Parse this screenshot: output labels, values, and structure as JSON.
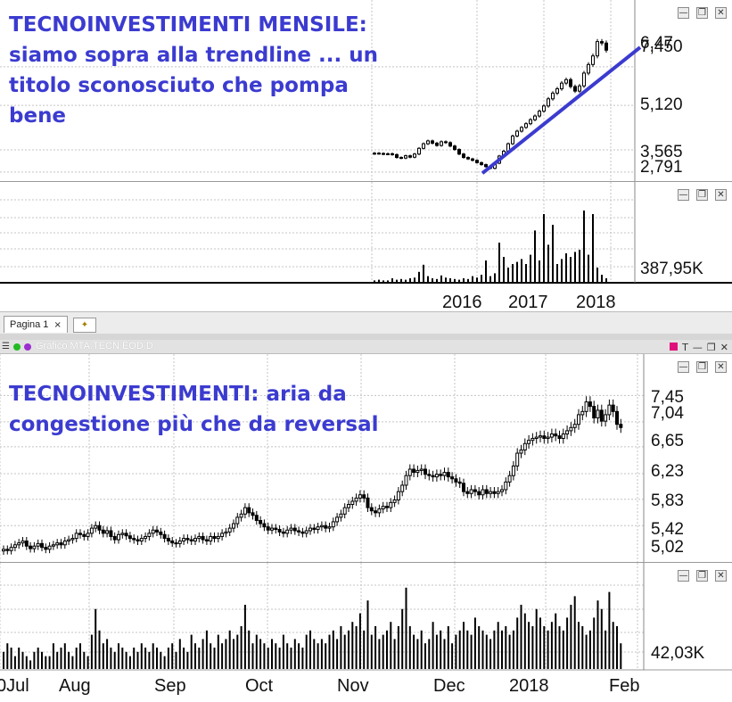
{
  "window_buttons": {
    "minimize": "—",
    "restore": "❐",
    "close": "✕"
  },
  "monthly_chart": {
    "annotation": "TECNOINVESTIMENTI MENSILE:\nsiamo sopra alla trendline ... un\ntitolo sconosciuto che pompa\nbene",
    "price_labels": [
      "6,47",
      "7,450",
      "5,120",
      "3,565",
      "2,791"
    ],
    "volume_label": "387,95K",
    "x_labels": [
      "2016",
      "2017",
      "2018"
    ]
  },
  "tabs": {
    "page_tab": "Pagina 1",
    "close_glyph": "×"
  },
  "daily_window": {
    "title": "Grafico MTA.TECN EOD.D",
    "tools": "T"
  },
  "daily_chart": {
    "annotation": "TECNOINVESTIMENTI: aria da\ncongestione più che da reversal",
    "price_labels": [
      "7,45",
      "7,04",
      "6,65",
      "6,23",
      "5,83",
      "5,42",
      "5,02"
    ],
    "volume_label": "42,03K",
    "x_labels": [
      "0Jul",
      "Aug",
      "Sep",
      "Oct",
      "Nov",
      "Dec",
      "2018",
      "Feb"
    ]
  },
  "chart_data": [
    {
      "type": "candlestick",
      "title": "TECNOINVESTIMENTI MENSILE",
      "timeframe": "monthly",
      "y_ticks": [
        2.791,
        3.565,
        5.12,
        6.47,
        7.45
      ],
      "ylim": [
        2.6,
        7.9
      ],
      "x_ticks": [
        "2016",
        "2017",
        "2018"
      ],
      "close_series": [
        3.45,
        3.44,
        3.42,
        3.43,
        3.4,
        3.3,
        3.28,
        3.36,
        3.31,
        3.42,
        3.62,
        3.78,
        3.88,
        3.8,
        3.72,
        3.85,
        3.82,
        3.7,
        3.58,
        3.42,
        3.3,
        3.25,
        3.2,
        3.12,
        3.05,
        2.98,
        2.92,
        3.1,
        3.35,
        3.52,
        3.78,
        4.05,
        4.22,
        4.35,
        4.48,
        4.62,
        4.75,
        4.92,
        5.1,
        5.35,
        5.55,
        5.7,
        5.9,
        6.02,
        5.78,
        5.62,
        5.8,
        6.25,
        6.55,
        6.85,
        7.35,
        7.3,
        7.05
      ],
      "volume_series": [
        0.02,
        0.03,
        0.02,
        0.02,
        0.05,
        0.03,
        0.04,
        0.03,
        0.05,
        0.06,
        0.14,
        0.24,
        0.08,
        0.05,
        0.04,
        0.09,
        0.06,
        0.05,
        0.04,
        0.03,
        0.05,
        0.04,
        0.08,
        0.06,
        0.1,
        0.3,
        0.08,
        0.12,
        0.55,
        0.35,
        0.2,
        0.25,
        0.28,
        0.32,
        0.25,
        0.38,
        0.72,
        0.3,
        0.95,
        0.52,
        0.8,
        0.25,
        0.32,
        0.4,
        0.35,
        0.42,
        0.45,
        1.0,
        0.38,
        0.95,
        0.2,
        0.1,
        0.05
      ],
      "volume_label": "387,95K",
      "trendline": {
        "from": {
          "index": 25,
          "value": 2.75
        },
        "to": {
          "index": 54,
          "value": 7.15
        }
      }
    },
    {
      "type": "candlestick",
      "title": "TECNOINVESTIMENTI: aria da congestione più che da reversal",
      "timeframe": "daily",
      "y_ticks": [
        5.02,
        5.42,
        5.83,
        6.23,
        6.65,
        7.04,
        7.45
      ],
      "ylim": [
        4.95,
        7.65
      ],
      "x_ticks": [
        "0Jul",
        "Aug",
        "Sep",
        "Oct",
        "Nov",
        "Dec",
        "2018",
        "Feb"
      ],
      "close_series": [
        5.05,
        5.03,
        5.08,
        5.12,
        5.15,
        5.18,
        5.1,
        5.06,
        5.1,
        5.14,
        5.08,
        5.05,
        5.1,
        5.12,
        5.15,
        5.12,
        5.18,
        5.2,
        5.22,
        5.3,
        5.28,
        5.25,
        5.3,
        5.38,
        5.42,
        5.35,
        5.3,
        5.34,
        5.25,
        5.2,
        5.28,
        5.3,
        5.26,
        5.22,
        5.2,
        5.18,
        5.22,
        5.25,
        5.3,
        5.35,
        5.32,
        5.28,
        5.22,
        5.18,
        5.15,
        5.14,
        5.18,
        5.22,
        5.2,
        5.18,
        5.22,
        5.25,
        5.2,
        5.18,
        5.25,
        5.22,
        5.25,
        5.3,
        5.32,
        5.38,
        5.45,
        5.55,
        5.6,
        5.7,
        5.62,
        5.58,
        5.5,
        5.45,
        5.4,
        5.35,
        5.38,
        5.36,
        5.32,
        5.3,
        5.35,
        5.38,
        5.34,
        5.32,
        5.3,
        5.34,
        5.38,
        5.36,
        5.4,
        5.42,
        5.38,
        5.4,
        5.48,
        5.55,
        5.6,
        5.7,
        5.75,
        5.8,
        5.85,
        5.9,
        5.85,
        5.7,
        5.65,
        5.62,
        5.68,
        5.72,
        5.7,
        5.78,
        5.82,
        5.95,
        6.05,
        6.2,
        6.3,
        6.25,
        6.28,
        6.3,
        6.22,
        6.2,
        6.18,
        6.22,
        6.2,
        6.25,
        6.18,
        6.15,
        6.1,
        6.08,
        5.95,
        5.92,
        5.98,
        5.95,
        5.9,
        5.98,
        5.92,
        5.95,
        5.92,
        5.95,
        5.98,
        6.1,
        6.2,
        6.35,
        6.55,
        6.6,
        6.7,
        6.75,
        6.78,
        6.8,
        6.82,
        6.78,
        6.8,
        6.85,
        6.82,
        6.78,
        6.85,
        6.9,
        6.95,
        7.0,
        7.15,
        7.2,
        7.35,
        7.28,
        7.1,
        7.22,
        7.05,
        7.15,
        7.3,
        7.2,
        7.0,
        6.95
      ],
      "volume_series": [
        4,
        6,
        5,
        3,
        5,
        4,
        3,
        2,
        4,
        5,
        4,
        3,
        3,
        6,
        4,
        5,
        6,
        4,
        3,
        5,
        6,
        4,
        3,
        8,
        14,
        9,
        6,
        7,
        5,
        4,
        6,
        5,
        4,
        3,
        5,
        4,
        6,
        5,
        4,
        6,
        5,
        4,
        3,
        5,
        6,
        4,
        7,
        5,
        4,
        8,
        6,
        5,
        7,
        9,
        6,
        5,
        8,
        6,
        7,
        9,
        7,
        8,
        10,
        15,
        9,
        6,
        8,
        7,
        6,
        5,
        7,
        6,
        5,
        8,
        6,
        5,
        7,
        6,
        5,
        8,
        9,
        7,
        6,
        7,
        6,
        8,
        9,
        7,
        10,
        8,
        9,
        11,
        10,
        13,
        9,
        16,
        8,
        10,
        7,
        8,
        9,
        11,
        7,
        10,
        14,
        19,
        10,
        8,
        7,
        9,
        6,
        7,
        11,
        8,
        9,
        7,
        10,
        6,
        8,
        9,
        11,
        9,
        8,
        12,
        10,
        9,
        8,
        7,
        9,
        11,
        9,
        10,
        8,
        9,
        12,
        15,
        13,
        11,
        10,
        14,
        12,
        10,
        9,
        11,
        13,
        10,
        9,
        12,
        15,
        17,
        11,
        10,
        8,
        9,
        12,
        16,
        14,
        9,
        18,
        11,
        10,
        6
      ],
      "volume_label": "42,03K"
    }
  ]
}
